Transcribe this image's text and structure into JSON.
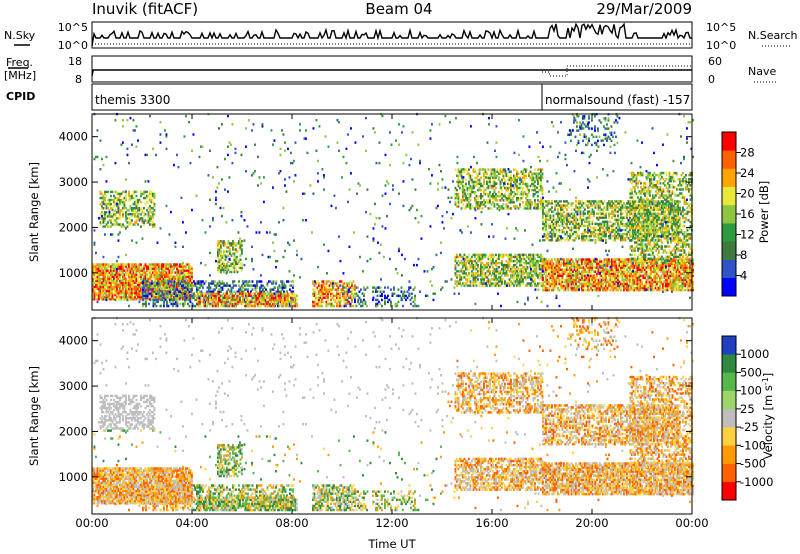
{
  "header": {
    "station": "Inuvik (fitACF)",
    "beam": "Beam 04",
    "date": "29/Mar/2009"
  },
  "summary_panels": {
    "nsky_label": "N.Sky",
    "nsearch_label": "N.Search",
    "freq_label_top": "Freq.",
    "freq_label_bottom": "[MHz]",
    "nave_label": "Nave",
    "cpid_label": "CPID",
    "noise_ticks": [
      "10^5",
      "10^0"
    ],
    "freq_ticks": [
      "18",
      "8"
    ],
    "nave_ticks": [
      "60",
      "0"
    ],
    "cpid_segments": [
      {
        "name": "themis 3300",
        "start_hour": 0,
        "end_hour": 18
      },
      {
        "name": "normalsound (fast) -157",
        "start_hour": 18,
        "end_hour": 24
      }
    ]
  },
  "chart_data": [
    {
      "type": "heatmap",
      "parameter": "Power",
      "xlabel": "",
      "ylabel": "Slant Range [km]",
      "xlim": [
        0,
        24
      ],
      "ylim": [
        180,
        4500
      ],
      "x_ticks": [
        "00:00",
        "04:00",
        "08:00",
        "12:00",
        "16:00",
        "20:00",
        "00:00"
      ],
      "y_ticks": [
        1000,
        2000,
        3000,
        4000
      ],
      "colorbar": {
        "label": "Power [dB]",
        "ticks": [
          4,
          8,
          12,
          16,
          20,
          24,
          28
        ],
        "range": [
          0,
          30
        ],
        "colors": [
          "#0000ff",
          "#2f54c8",
          "#3e7a3e",
          "#2e9a3e",
          "#8dc63f",
          "#e8e838",
          "#ffa500",
          "#ff6000",
          "#ff0000"
        ]
      }
    },
    {
      "type": "heatmap",
      "parameter": "Velocity",
      "xlabel": "Time UT",
      "ylabel": "Slant Range [km]",
      "xlim": [
        0,
        24
      ],
      "ylim": [
        180,
        4500
      ],
      "x_ticks": [
        "00:00",
        "04:00",
        "08:00",
        "12:00",
        "16:00",
        "20:00",
        "00:00"
      ],
      "y_ticks": [
        1000,
        2000,
        3000,
        4000
      ],
      "colorbar": {
        "label": "Velocity [m s",
        "label_sup": "-1",
        "label_end": "]",
        "ticks": [
          "1000",
          "500",
          "100",
          "25",
          "-25",
          "-100",
          "-500",
          "-1000"
        ],
        "colors": [
          "#2040c0",
          "#2e8a3e",
          "#56b84a",
          "#9bd66b",
          "#bebebe",
          "#ffd040",
          "#ff9a00",
          "#ff6000",
          "#ff0000"
        ]
      }
    }
  ]
}
